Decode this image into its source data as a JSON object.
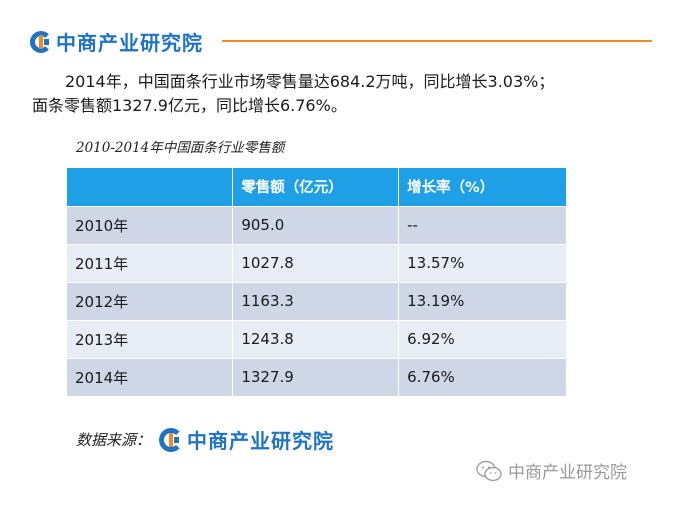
{
  "brand": {
    "name": "中商产业研究院",
    "accent_blue": "#1f73c7",
    "accent_orange": "#f08a24",
    "icon": "brand-logo-icon"
  },
  "intro": {
    "line1": "2014年，中国面条行业市场零售量达684.2万吨，同比增长3.03%；",
    "line2": "面条零售额1327.9亿元，同比增长6.76%。"
  },
  "table": {
    "title": "2010-2014年中国面条行业零售额",
    "header_color": "#1e9fe6",
    "columns": [
      "",
      "零售额（亿元）",
      "增长率（%）"
    ],
    "rows": [
      {
        "year": "2010年",
        "sales": "905.0",
        "growth": "--"
      },
      {
        "year": "2011年",
        "sales": "1027.8",
        "growth": "13.57%"
      },
      {
        "year": "2012年",
        "sales": "1163.3",
        "growth": "13.19%"
      },
      {
        "year": "2013年",
        "sales": "1243.8",
        "growth": "6.92%"
      },
      {
        "year": "2014年",
        "sales": "1327.9",
        "growth": "6.76%"
      }
    ]
  },
  "source": {
    "label": "数据来源：",
    "name": "中商产业研究院"
  },
  "watermark": {
    "icon": "wechat-icon",
    "text": "中商产业研究院"
  }
}
